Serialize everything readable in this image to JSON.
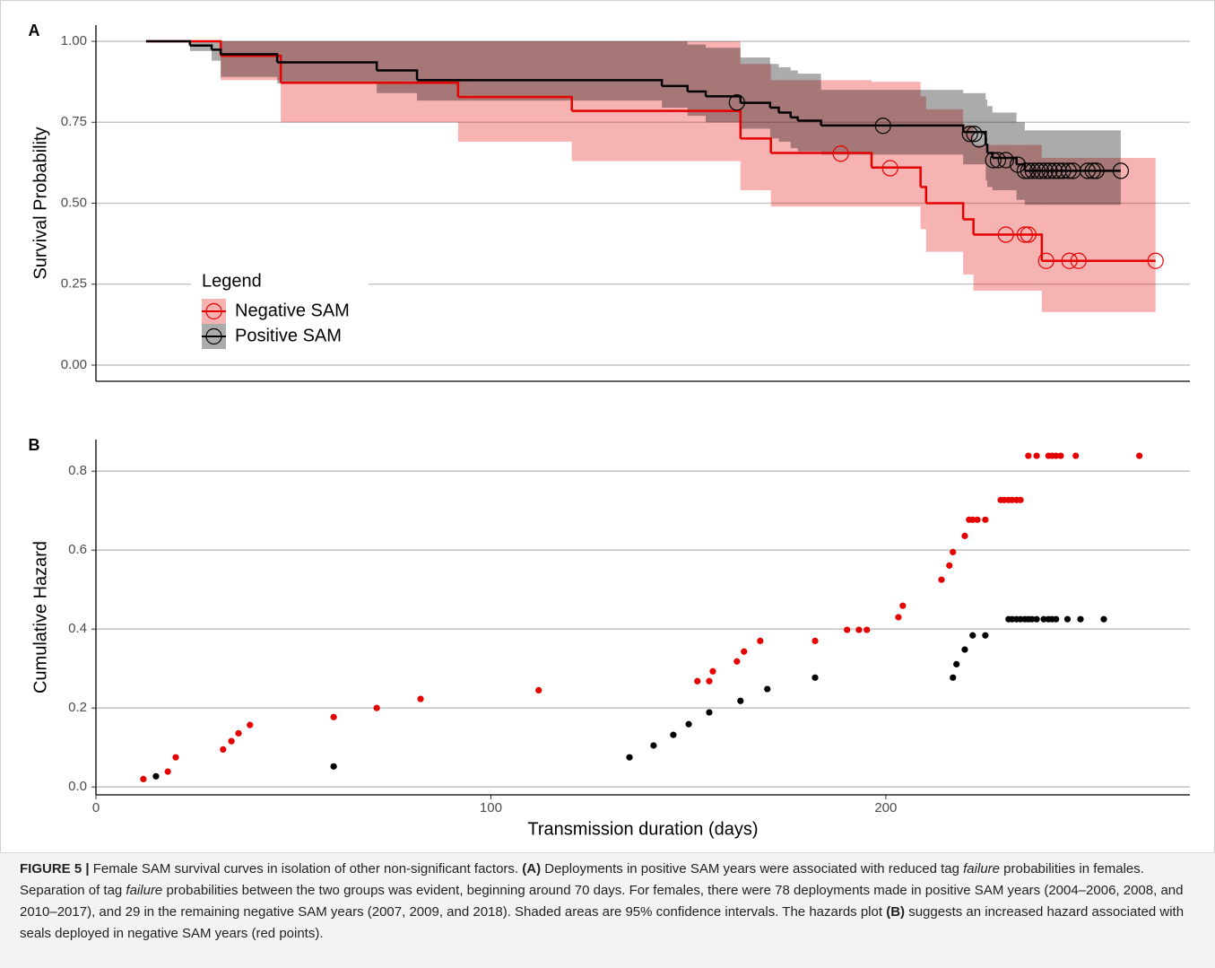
{
  "chart_data": [
    {
      "type": "step",
      "panel_label": "A",
      "ylabel": "Survival Probability",
      "xlim": [
        0,
        277
      ],
      "ylim": [
        -0.05,
        1.05
      ],
      "yticks": [
        {
          "value": 0,
          "label": "0.00"
        },
        0.25,
        {
          "value": 0.5,
          "label": "0.50"
        },
        0.75,
        {
          "value": 1,
          "label": "1.00"
        }
      ],
      "grid": true,
      "legend_title": "Legend",
      "series": [
        {
          "name": "Negative SAM",
          "color": "#e60000",
          "x": [
            12.7,
            31.6,
            46.8,
            91.7,
            120.5,
            163.2,
            170.9,
            196.4,
            208.8,
            210.2,
            219.6,
            222.2,
            239.5,
            268.3
          ],
          "values": [
            1.0,
            0.955,
            0.872,
            0.828,
            0.785,
            0.7,
            0.655,
            0.61,
            0.55,
            0.5,
            0.45,
            0.403,
            0.322,
            0.322
          ],
          "upper": [
            1,
            1,
            1,
            1,
            1,
            0.93,
            0.88,
            0.875,
            0.83,
            0.79,
            0.74,
            0.68,
            0.64,
            0.64
          ],
          "lower": [
            1,
            0.88,
            0.75,
            0.69,
            0.63,
            0.54,
            0.49,
            0.49,
            0.42,
            0.35,
            0.28,
            0.23,
            0.164,
            0.164
          ],
          "censor_x": [
            188.6,
            201.1,
            230.4,
            235.2,
            236.1,
            240.6,
            246.5,
            248.8,
            268.3
          ],
          "censor_values": [
            0.653,
            0.608,
            0.403,
            0.403,
            0.403,
            0.322,
            0.322,
            0.322,
            0.322
          ]
        },
        {
          "name": "Positive SAM",
          "color": "#000000",
          "x": [
            12.7,
            23.8,
            29.3,
            31.6,
            45.9,
            71.1,
            81.3,
            143.3,
            149.8,
            154.4,
            163.2,
            170.7,
            172.9,
            175.9,
            177.7,
            183.6,
            219.6,
            225.3,
            225.7,
            227.0,
            233.1,
            235.2,
            259.5
          ],
          "values": [
            1.0,
            0.987,
            0.974,
            0.96,
            0.935,
            0.91,
            0.88,
            0.862,
            0.845,
            0.83,
            0.81,
            0.795,
            0.78,
            0.765,
            0.755,
            0.74,
            0.72,
            0.68,
            0.655,
            0.64,
            0.62,
            0.6,
            0.6
          ],
          "upper": [
            1,
            1,
            1,
            1,
            1,
            1,
            1,
            1,
            0.99,
            0.98,
            0.95,
            0.93,
            0.92,
            0.91,
            0.9,
            0.85,
            0.84,
            0.82,
            0.8,
            0.78,
            0.75,
            0.725,
            0.725
          ],
          "lower": [
            1,
            0.97,
            0.94,
            0.89,
            0.87,
            0.84,
            0.817,
            0.795,
            0.77,
            0.75,
            0.73,
            0.7,
            0.69,
            0.67,
            0.66,
            0.65,
            0.62,
            0.57,
            0.55,
            0.54,
            0.51,
            0.495,
            0.495
          ],
          "censor_x": [
            162.3,
            199.3,
            221.3,
            222.4,
            223.6,
            227.2,
            228.4,
            230.4,
            233.4,
            235.2,
            236.1,
            237.2,
            238.4,
            239.3,
            240.4,
            241.5,
            242.7,
            243.8,
            244.9,
            246.3,
            247.4,
            251.1,
            252.4,
            253.3,
            259.5
          ],
          "censor_values": [
            0.811,
            0.739,
            0.714,
            0.714,
            0.697,
            0.633,
            0.633,
            0.633,
            0.619,
            0.6,
            0.6,
            0.6,
            0.6,
            0.6,
            0.6,
            0.6,
            0.6,
            0.6,
            0.6,
            0.6,
            0.6,
            0.6,
            0.6,
            0.6,
            0.6
          ]
        }
      ]
    },
    {
      "type": "scatter",
      "panel_label": "B",
      "ylabel": "Cumulative Hazard",
      "xlabel": "Transmission duration (days)",
      "xlim": [
        0,
        277
      ],
      "ylim": [
        -0.02,
        0.88
      ],
      "xticks": [
        0,
        100,
        200
      ],
      "yticks": [
        {
          "value": 0,
          "label": "0.0"
        },
        0.2,
        0.4,
        0.6,
        0.8
      ],
      "grid": true,
      "series": [
        {
          "color": "#e60000",
          "x": [
            12.0,
            18.2,
            20.2,
            32.2,
            34.3,
            36.1,
            39.0,
            60.2,
            71.1,
            82.2,
            112.1,
            152.3,
            155.3,
            156.2,
            162.3,
            164.1,
            168.2,
            182.1,
            190.2,
            193.2,
            195.2,
            203.2,
            204.3,
            214.1,
            216.1,
            217.0,
            220.0,
            221.1,
            222.0,
            223.2,
            225.2,
            229.1,
            230.0,
            231.1,
            232.0,
            233.1,
            234.1,
            236.1,
            238.2,
            241.2,
            242.1,
            243.1,
            244.3,
            248.1,
            264.2
          ],
          "values": [
            0.02,
            0.039,
            0.075,
            0.095,
            0.116,
            0.136,
            0.157,
            0.177,
            0.2,
            0.223,
            0.245,
            0.268,
            0.268,
            0.293,
            0.318,
            0.343,
            0.37,
            0.37,
            0.398,
            0.398,
            0.398,
            0.43,
            0.459,
            0.525,
            0.561,
            0.595,
            0.636,
            0.677,
            0.677,
            0.677,
            0.677,
            0.727,
            0.727,
            0.727,
            0.727,
            0.727,
            0.727,
            0.839,
            0.839,
            0.839,
            0.839,
            0.839,
            0.839,
            0.839,
            0.839
          ]
        },
        {
          "color": "#000000",
          "x": [
            15.2,
            60.2,
            135.1,
            141.2,
            146.2,
            150.1,
            155.3,
            163.2,
            170.0,
            182.1,
            217.0,
            217.9,
            220.0,
            222.0,
            225.2,
            231.1,
            232.0,
            233.1,
            234.1,
            235.2,
            236.1,
            237.0,
            238.2,
            240.0,
            241.2,
            242.1,
            243.1,
            246.0,
            249.3,
            255.2
          ],
          "values": [
            0.027,
            0.052,
            0.075,
            0.105,
            0.132,
            0.159,
            0.189,
            0.218,
            0.248,
            0.277,
            0.277,
            0.311,
            0.348,
            0.384,
            0.384,
            0.425,
            0.425,
            0.425,
            0.425,
            0.425,
            0.425,
            0.425,
            0.425,
            0.425,
            0.425,
            0.425,
            0.425,
            0.425,
            0.425,
            0.425
          ]
        }
      ]
    }
  ],
  "caption": [
    {
      "text": "FIGURE 5 |",
      "bold": true
    },
    {
      "text": " Female SAM survival curves in isolation of other non-significant factors. "
    },
    {
      "text": "(A)",
      "bold": true
    },
    {
      "text": " Deployments in positive SAM years were associated with reduced tag "
    },
    {
      "text": "failure",
      "italic": true
    },
    {
      "text": " probabilities in females. Separation of tag "
    },
    {
      "text": "failure",
      "italic": true
    },
    {
      "text": " probabilities between the two groups was evident, beginning around 70 days. For females, there were 78 deployments made in positive SAM years (2004–2006, 2008, and 2010–2017), and 29 in the remaining negative SAM years (2007, 2009, and 2018). Shaded areas are 95% confidence intervals. The hazards plot "
    },
    {
      "text": "(B)",
      "bold": true
    },
    {
      "text": " suggests an increased hazard associated with seals deployed in negative SAM years (red points)."
    }
  ]
}
